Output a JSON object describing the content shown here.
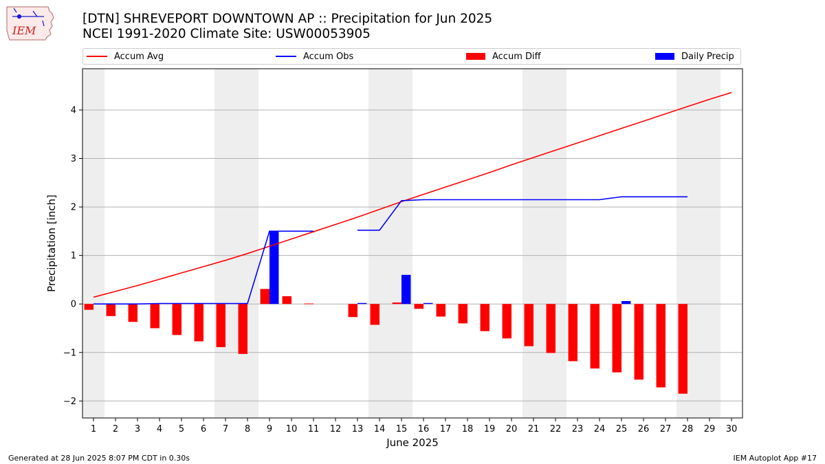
{
  "header": {
    "title_line1": "[DTN] SHREVEPORT DOWNTOWN AP :: Precipitation for Jun 2025",
    "title_line2": "NCEI 1991-2020 Climate Site: USW00053905",
    "logo_text": "IEM"
  },
  "footer": {
    "left": "Generated at 28 Jun 2025 8:07 PM CDT in 0.30s",
    "right": "IEM Autoplot App #17"
  },
  "legend": {
    "items": [
      {
        "label": "Accum Avg",
        "kind": "line",
        "color": "#ff0000"
      },
      {
        "label": "Accum Obs",
        "kind": "line",
        "color": "#0000ff"
      },
      {
        "label": "Accum Diff",
        "kind": "bar",
        "color": "#ff0000"
      },
      {
        "label": "Daily Precip",
        "kind": "bar",
        "color": "#0000ff"
      }
    ]
  },
  "chart_data": {
    "type": "bar",
    "xlabel": "June 2025",
    "ylabel": "Precipitation [inch]",
    "xlim": [
      0.5,
      30.5
    ],
    "ylim": [
      -2.35,
      4.85
    ],
    "yticks": [
      -2,
      -1,
      0,
      1,
      2,
      3,
      4
    ],
    "ytick_labels": [
      "−2",
      "−1",
      "0",
      "1",
      "2",
      "3",
      "4"
    ],
    "days": [
      1,
      2,
      3,
      4,
      5,
      6,
      7,
      8,
      9,
      10,
      11,
      12,
      13,
      14,
      15,
      16,
      17,
      18,
      19,
      20,
      21,
      22,
      23,
      24,
      25,
      26,
      27,
      28,
      29,
      30
    ],
    "weekend_days": [
      1,
      7,
      8,
      14,
      15,
      21,
      22,
      28,
      29
    ],
    "grid": true,
    "series": [
      {
        "name": "Accum Avg",
        "type": "line",
        "color": "#ff0000",
        "values": [
          0.14,
          0.26,
          0.38,
          0.51,
          0.64,
          0.77,
          0.9,
          1.04,
          1.19,
          1.34,
          1.49,
          1.64,
          1.79,
          1.95,
          2.11,
          2.26,
          2.41,
          2.56,
          2.71,
          2.87,
          3.02,
          3.17,
          3.32,
          3.47,
          3.62,
          3.77,
          3.92,
          4.07,
          4.22,
          4.36
        ]
      },
      {
        "name": "Accum Obs",
        "type": "line",
        "color": "#0000ff",
        "values": [
          0.0,
          0.0,
          0.0,
          0.01,
          0.01,
          0.01,
          0.01,
          0.01,
          1.5,
          1.5,
          1.5,
          null,
          1.52,
          1.52,
          2.13,
          2.15,
          2.15,
          2.15,
          2.15,
          2.15,
          2.15,
          2.15,
          2.15,
          2.15,
          2.21,
          2.21,
          2.21,
          2.21,
          null,
          null
        ]
      },
      {
        "name": "Accum Diff",
        "type": "bar",
        "color": "#ff0000",
        "values": [
          -0.12,
          -0.25,
          -0.37,
          -0.5,
          -0.64,
          -0.77,
          -0.89,
          -1.03,
          0.31,
          0.16,
          0.01,
          null,
          -0.27,
          -0.43,
          0.03,
          -0.1,
          -0.26,
          -0.4,
          -0.56,
          -0.71,
          -0.87,
          -1.01,
          -1.18,
          -1.33,
          -1.41,
          -1.56,
          -1.72,
          -1.85,
          null,
          null
        ]
      },
      {
        "name": "Daily Precip",
        "type": "bar",
        "color": "#0000ff",
        "values": [
          0,
          0,
          0,
          0,
          0,
          0,
          0,
          0,
          1.49,
          0,
          0,
          null,
          0.02,
          0,
          0.6,
          0.02,
          0,
          0,
          0,
          0,
          0,
          0,
          0,
          0,
          0.06,
          0,
          0,
          0,
          null,
          null
        ]
      }
    ]
  }
}
